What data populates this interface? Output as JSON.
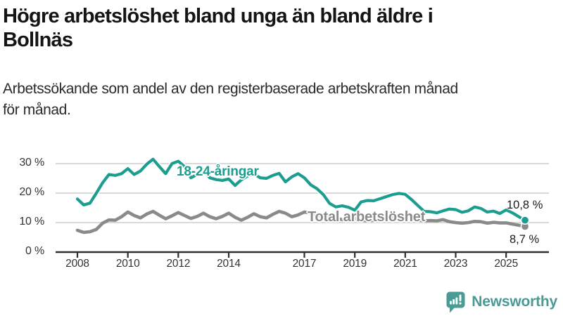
{
  "header": {
    "title_line1": "Högre arbetslöshet bland unga än bland äldre i",
    "title_line2": "Bollnäs",
    "subtitle_line1": "Arbetssökande som andel av den registerbaserade arbetskraften månad",
    "subtitle_line2": "för månad."
  },
  "chart_data": {
    "type": "line",
    "title": "Högre arbetslöshet bland unga än bland äldre i Bollnäs",
    "subtitle": "Arbetssökande som andel av den registerbaserade arbetskraften månad för månad.",
    "unit": "%",
    "xlabel": "",
    "ylabel": "",
    "xlim": [
      2008,
      2025.83
    ],
    "ylim": [
      0,
      32
    ],
    "grid": "horizontal",
    "legend_position": "inline-labels",
    "y_ticks": [
      {
        "value": 30,
        "label": "30 %"
      },
      {
        "value": 20,
        "label": "20 %"
      },
      {
        "value": 10,
        "label": "10 %"
      },
      {
        "value": 0,
        "label": "0 %"
      }
    ],
    "x_ticks": [
      {
        "year": 2008,
        "label": "2008"
      },
      {
        "year": 2010,
        "label": "2010"
      },
      {
        "year": 2012,
        "label": "2012"
      },
      {
        "year": 2014,
        "label": "2014"
      },
      {
        "year": 2017,
        "label": "2017"
      },
      {
        "year": 2019,
        "label": "2019"
      },
      {
        "year": 2021,
        "label": "2021"
      },
      {
        "year": 2023,
        "label": "2023"
      },
      {
        "year": 2025,
        "label": "2025"
      }
    ],
    "series": [
      {
        "name": "Total arbetslöshet",
        "color": "#8a8a8a",
        "end_value": 8.7,
        "end_value_label": "8,7 %",
        "points": [
          [
            2008,
            7.4
          ],
          [
            2008.25,
            6.7
          ],
          [
            2008.5,
            6.9
          ],
          [
            2008.75,
            7.7
          ],
          [
            2009,
            9.8
          ],
          [
            2009.25,
            10.9
          ],
          [
            2009.5,
            10.8
          ],
          [
            2009.75,
            12
          ],
          [
            2010,
            13.6
          ],
          [
            2010.25,
            12.4
          ],
          [
            2010.5,
            11.6
          ],
          [
            2010.75,
            12.9
          ],
          [
            2011,
            13.8
          ],
          [
            2011.25,
            12.5
          ],
          [
            2011.5,
            11.3
          ],
          [
            2011.75,
            12.3
          ],
          [
            2012,
            13.4
          ],
          [
            2012.25,
            12.4
          ],
          [
            2012.5,
            11.4
          ],
          [
            2012.75,
            12.1
          ],
          [
            2013,
            13.2
          ],
          [
            2013.25,
            12
          ],
          [
            2013.5,
            11.3
          ],
          [
            2013.75,
            12.1
          ],
          [
            2014,
            13.2
          ],
          [
            2014.25,
            11.8
          ],
          [
            2014.5,
            10.8
          ],
          [
            2014.75,
            11.8
          ],
          [
            2015,
            13
          ],
          [
            2015.25,
            12
          ],
          [
            2015.5,
            11.6
          ],
          [
            2015.75,
            12.8
          ],
          [
            2016,
            13.8
          ],
          [
            2016.25,
            13.2
          ],
          [
            2016.5,
            12
          ],
          [
            2016.75,
            12.6
          ],
          [
            2017,
            13.6
          ],
          [
            2017.25,
            13.2
          ],
          [
            2017.5,
            12.4
          ],
          [
            2017.75,
            12.2
          ],
          [
            2018,
            12.4
          ],
          [
            2018.25,
            11.6
          ],
          [
            2018.5,
            11
          ],
          [
            2018.75,
            11.2
          ],
          [
            2019,
            11.4
          ],
          [
            2019.25,
            10.8
          ],
          [
            2019.5,
            10.6
          ],
          [
            2019.75,
            10.8
          ],
          [
            2020,
            11
          ],
          [
            2020.25,
            11.8
          ],
          [
            2020.5,
            12
          ],
          [
            2020.75,
            11.8
          ],
          [
            2021,
            11.8
          ],
          [
            2021.25,
            11.4
          ],
          [
            2021.5,
            10.9
          ],
          [
            2021.75,
            10.6
          ],
          [
            2022,
            10.7
          ],
          [
            2022.25,
            10.6
          ],
          [
            2022.5,
            11
          ],
          [
            2022.75,
            10.3
          ],
          [
            2023,
            10
          ],
          [
            2023.25,
            9.8
          ],
          [
            2023.5,
            10
          ],
          [
            2023.75,
            10.4
          ],
          [
            2024,
            10.3
          ],
          [
            2024.25,
            9.8
          ],
          [
            2024.5,
            10.1
          ],
          [
            2024.75,
            9.9
          ],
          [
            2025,
            9.9
          ],
          [
            2025.25,
            9.5
          ],
          [
            2025.5,
            9.1
          ],
          [
            2025.75,
            8.7
          ]
        ]
      },
      {
        "name": "18-24-åringar",
        "color": "#1b9e8f",
        "end_value": 10.8,
        "end_value_label": "10,8 %",
        "points": [
          [
            2008,
            18
          ],
          [
            2008.25,
            16
          ],
          [
            2008.5,
            16.6
          ],
          [
            2008.75,
            20
          ],
          [
            2009,
            23.5
          ],
          [
            2009.25,
            26.3
          ],
          [
            2009.5,
            26
          ],
          [
            2009.75,
            26.6
          ],
          [
            2010,
            28.3
          ],
          [
            2010.25,
            26.3
          ],
          [
            2010.5,
            27.5
          ],
          [
            2010.75,
            29.8
          ],
          [
            2011,
            31.5
          ],
          [
            2011.25,
            29
          ],
          [
            2011.5,
            26.6
          ],
          [
            2011.75,
            30
          ],
          [
            2012,
            30.8
          ],
          [
            2012.25,
            29
          ],
          [
            2012.5,
            25.2
          ],
          [
            2012.75,
            26.3
          ],
          [
            2013,
            27.9
          ],
          [
            2013.25,
            25.2
          ],
          [
            2013.5,
            24.6
          ],
          [
            2013.75,
            24.3
          ],
          [
            2014,
            24.8
          ],
          [
            2014.25,
            22.6
          ],
          [
            2014.5,
            24.5
          ],
          [
            2014.75,
            25.8
          ],
          [
            2015,
            26.5
          ],
          [
            2015.25,
            25.2
          ],
          [
            2015.5,
            25
          ],
          [
            2015.75,
            26
          ],
          [
            2016,
            26.7
          ],
          [
            2016.25,
            23.8
          ],
          [
            2016.5,
            25.5
          ],
          [
            2016.75,
            26.6
          ],
          [
            2017,
            25.2
          ],
          [
            2017.25,
            22.8
          ],
          [
            2017.5,
            21.5
          ],
          [
            2017.75,
            19.5
          ],
          [
            2018,
            16.5
          ],
          [
            2018.25,
            15.3
          ],
          [
            2018.5,
            15.7
          ],
          [
            2018.75,
            15.2
          ],
          [
            2019,
            14.2
          ],
          [
            2019.25,
            17
          ],
          [
            2019.5,
            17.5
          ],
          [
            2019.75,
            17.4
          ],
          [
            2020,
            18.1
          ],
          [
            2020.25,
            18.8
          ],
          [
            2020.5,
            19.5
          ],
          [
            2020.75,
            19.9
          ],
          [
            2021,
            19.6
          ],
          [
            2021.25,
            17.8
          ],
          [
            2021.5,
            15.8
          ],
          [
            2021.75,
            13.8
          ],
          [
            2022,
            13.7
          ],
          [
            2022.25,
            13.3
          ],
          [
            2022.5,
            14
          ],
          [
            2022.75,
            14.6
          ],
          [
            2023,
            14.4
          ],
          [
            2023.25,
            13.5
          ],
          [
            2023.5,
            14
          ],
          [
            2023.75,
            15.3
          ],
          [
            2024,
            14.8
          ],
          [
            2024.25,
            13.6
          ],
          [
            2024.5,
            13.9
          ],
          [
            2024.75,
            13.1
          ],
          [
            2025,
            14.3
          ],
          [
            2025.25,
            13.3
          ],
          [
            2025.5,
            12
          ],
          [
            2025.75,
            10.8
          ]
        ]
      }
    ],
    "colors": {
      "young": "#1b9e8f",
      "total_line": "#8a8a8a",
      "gridline": "#d9d9d9",
      "axis": "#2e2e2e",
      "text": "#333333"
    }
  },
  "footer": {
    "brand": "Newsworthy",
    "brand_color": "#4a9a95"
  }
}
